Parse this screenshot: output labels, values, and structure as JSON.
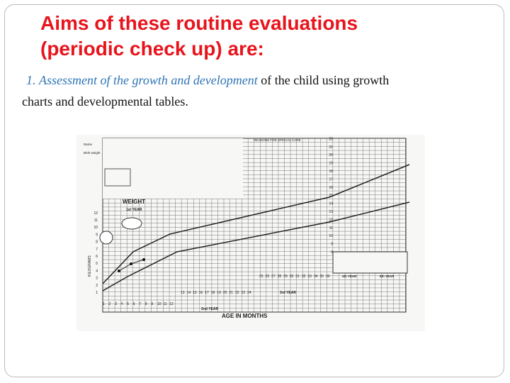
{
  "title_lines": [
    "Aims of these routine evaluations",
    "(periodic check up) are:"
  ],
  "body": {
    "number": "1.",
    "emphasis": "Assessment of the growth and development",
    "text": " of the child using growth",
    "text_line2": "charts and developmental tables."
  },
  "figure": {
    "header": "REASONS FOR SPECIAL CARE",
    "name_label": "Name",
    "birth_weight_label": "Birth weight",
    "weight_label": "WEIGHT",
    "first_year": "1st YEAR",
    "y_axis_label": "KILOGRAMS",
    "x_axis_label": "AGE IN MONTHS",
    "second_year": "2nd YEAR",
    "third_year": "3rd YEAR",
    "fourth_year": "4th YEAR",
    "fifth_year": "5th YEAR",
    "left_scale": [
      1,
      2,
      3,
      4,
      5,
      6,
      7,
      8,
      9,
      10,
      11,
      12
    ],
    "right_scale": [
      8,
      9,
      10,
      11,
      12,
      13,
      14,
      15,
      16,
      17,
      18,
      19,
      20,
      21,
      22
    ],
    "months": [
      1,
      2,
      3,
      4,
      5,
      6,
      7,
      8,
      9,
      10,
      11,
      12,
      13,
      14,
      15,
      16,
      17,
      18,
      19,
      20,
      21,
      22,
      23,
      24,
      25,
      26,
      27,
      28,
      29,
      30,
      31,
      32,
      33,
      34,
      35,
      36
    ]
  }
}
